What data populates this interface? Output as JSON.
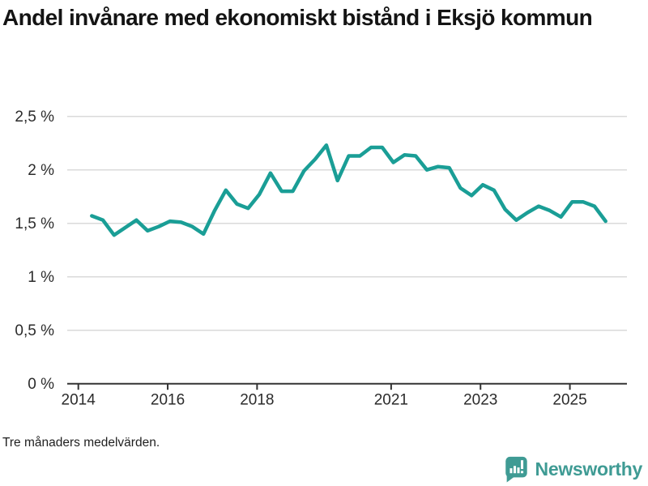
{
  "header": {
    "title": "Andel invånare med ekonomiskt bistånd i Eksjö kommun"
  },
  "footer": {
    "note": "Tre månaders medelvärden.",
    "brand": "Newsworthy"
  },
  "colors": {
    "line": "#1A9E96",
    "brand_teal": "#3F9B94",
    "grid": "#DADADA",
    "axis": "#333333",
    "tick_text": "#2B2B2B",
    "title_text": "#141414",
    "background": "#FFFFFF"
  },
  "icons": {
    "logo": "newsworthy-speech-bubble-barchart-icon"
  },
  "chart_data": {
    "type": "line",
    "title": "Andel invånare med ekonomiskt bistånd i Eksjö kommun",
    "note": "Tre månaders medelvärden.",
    "xlabel": "",
    "ylabel": "",
    "grid": "horizontal",
    "legend": "none",
    "xlim": [
      2013.75,
      2026.3
    ],
    "ylim": [
      0,
      2.5
    ],
    "xtick_values": [
      2014,
      2016,
      2018,
      2021,
      2023,
      2025
    ],
    "xtick_labels": [
      "2014",
      "2016",
      "2018",
      "2021",
      "2023",
      "2025"
    ],
    "ytick_values": [
      0,
      0.5,
      1,
      1.5,
      2,
      2.5
    ],
    "ytick_labels": [
      "0 %",
      "0,5 %",
      "1 %",
      "1,5 %",
      "2 %",
      "2,5 %"
    ],
    "x": [
      2014.3,
      2014.55,
      2014.8,
      2015.05,
      2015.3,
      2015.55,
      2015.8,
      2016.05,
      2016.3,
      2016.55,
      2016.8,
      2017.05,
      2017.3,
      2017.55,
      2017.8,
      2018.05,
      2018.3,
      2018.55,
      2018.8,
      2019.05,
      2019.3,
      2019.55,
      2019.8,
      2020.05,
      2020.3,
      2020.55,
      2020.8,
      2021.05,
      2021.3,
      2021.55,
      2021.8,
      2022.05,
      2022.3,
      2022.55,
      2022.8,
      2023.05,
      2023.3,
      2023.55,
      2023.8,
      2024.05,
      2024.3,
      2024.55,
      2024.8,
      2025.05,
      2025.3,
      2025.55,
      2025.8
    ],
    "values": [
      1.57,
      1.53,
      1.39,
      1.46,
      1.53,
      1.43,
      1.47,
      1.52,
      1.51,
      1.47,
      1.4,
      1.62,
      1.81,
      1.68,
      1.64,
      1.77,
      1.97,
      1.8,
      1.8,
      1.99,
      2.1,
      2.23,
      1.9,
      2.13,
      2.13,
      2.21,
      2.21,
      2.07,
      2.14,
      2.13,
      2.0,
      2.03,
      2.02,
      1.83,
      1.76,
      1.86,
      1.81,
      1.63,
      1.53,
      1.6,
      1.66,
      1.62,
      1.56,
      1.7,
      1.7,
      1.66,
      1.52
    ],
    "line_color": "#1A9E96"
  }
}
